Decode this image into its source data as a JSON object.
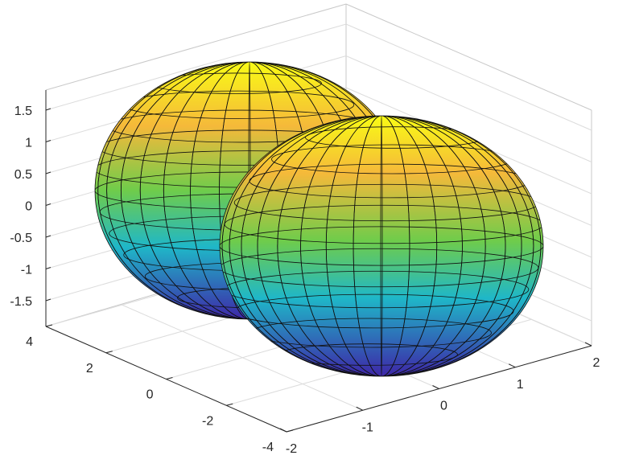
{
  "chart_data": {
    "type": "surface",
    "title": "",
    "xlabel": "",
    "ylabel": "",
    "zlabel": "",
    "xlim": [
      -2,
      2
    ],
    "ylim": [
      -4,
      4
    ],
    "zlim": [
      -1.75,
      1.75
    ],
    "x_ticks": [
      -2,
      -1,
      0,
      1,
      2
    ],
    "y_ticks": [
      -4,
      -2,
      0,
      2,
      4
    ],
    "z_ticks": [
      -1.5,
      -1,
      -0.5,
      0,
      0.5,
      1,
      1.5
    ],
    "x_tick_labels": [
      "-2",
      "-1",
      "0",
      "1",
      "2"
    ],
    "y_tick_labels": [
      "-4",
      "-2",
      "0",
      "2",
      "4"
    ],
    "z_tick_labels": [
      "-1.5",
      "-1",
      "-0.5",
      "0",
      "0.5",
      "1",
      "1.5"
    ],
    "grid": true,
    "box": true,
    "colormap": "parula",
    "surface": {
      "description_shape": "two-lobed torus-like radiation pattern",
      "lobes": [
        {
          "center_y": 1.9,
          "radius_y": 2.0,
          "radius_x": 1.1,
          "radius_z": 1.5
        },
        {
          "center_y": -1.9,
          "radius_y": 2.0,
          "radius_x": 1.1,
          "radius_z": 1.5
        }
      ],
      "mesh_lines": true
    },
    "colors": {
      "low": "#3e26a8",
      "mid_low": "#1fb7c8",
      "mid": "#6fcc4b",
      "mid_high": "#f5b93a",
      "high": "#f9fb15"
    }
  }
}
